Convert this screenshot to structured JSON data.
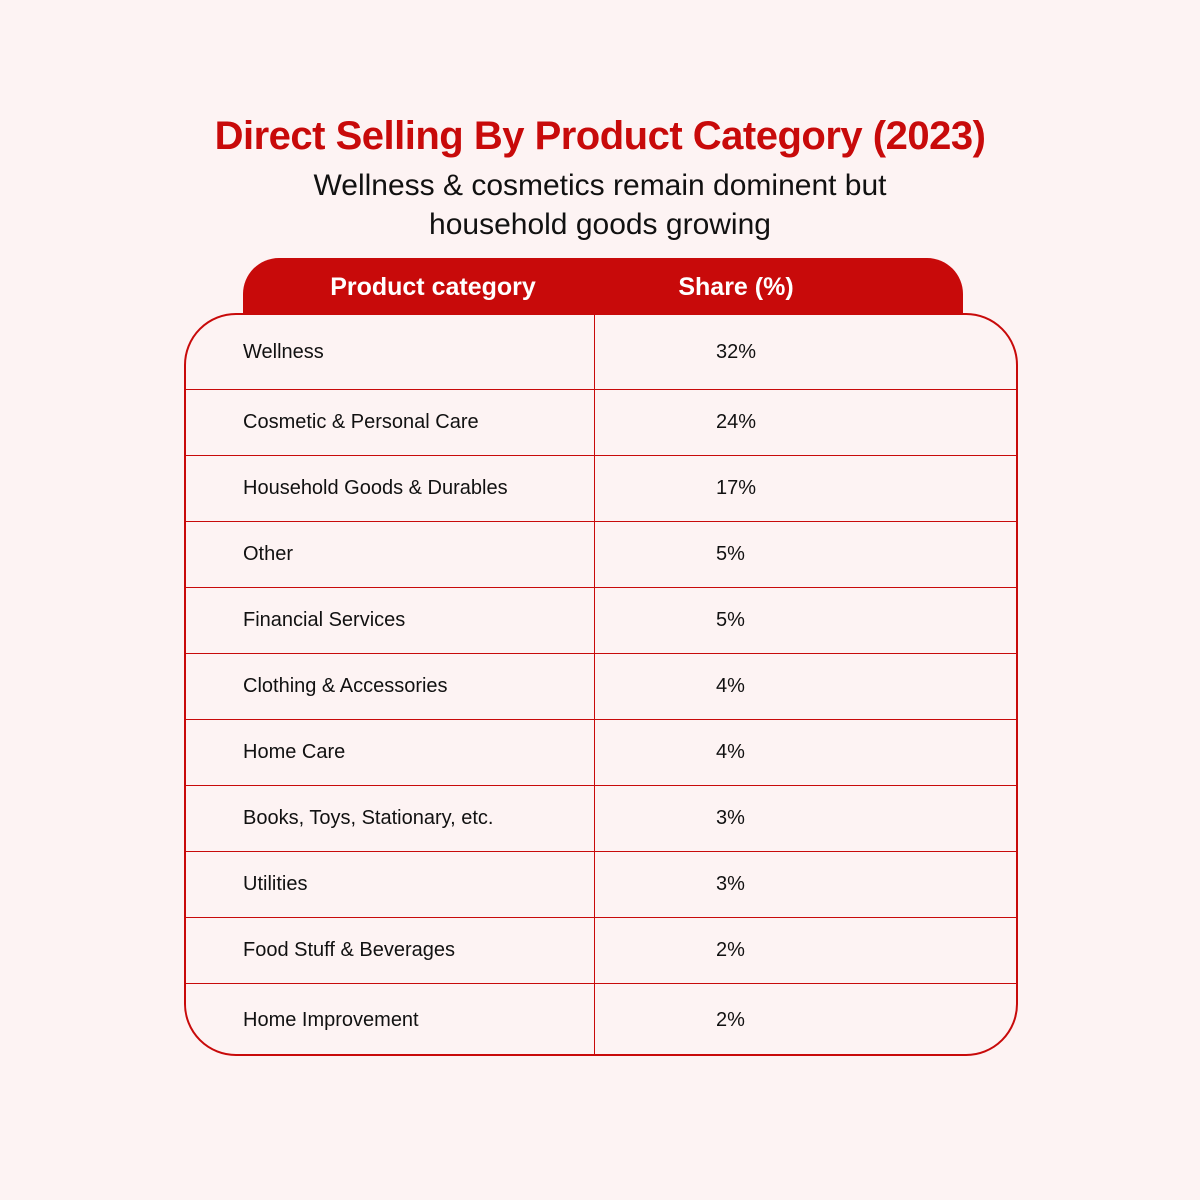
{
  "chart_data": {
    "type": "table",
    "title": "Direct Selling By Product Category (2023)",
    "subtitle": "Wellness & cosmetics remain dominent but household goods growing",
    "columns": [
      "Product category",
      "Share (%)"
    ],
    "rows": [
      {
        "category": "Wellness",
        "share": "32%"
      },
      {
        "category": "Cosmetic & Personal Care",
        "share": "24%"
      },
      {
        "category": "Household Goods & Durables",
        "share": "17%"
      },
      {
        "category": "Other",
        "share": "5%"
      },
      {
        "category": "Financial Services",
        "share": "5%"
      },
      {
        "category": "Clothing & Accessories",
        "share": "4%"
      },
      {
        "category": "Home Care",
        "share": "4%"
      },
      {
        "category": "Books, Toys, Stationary, etc.",
        "share": "3%"
      },
      {
        "category": "Utilities",
        "share": "3%"
      },
      {
        "category": "Food Stuff & Beverages",
        "share": "2%"
      },
      {
        "category": "Home Improvement",
        "share": "2%"
      }
    ]
  },
  "colors": {
    "accent": "#c80a0a",
    "background": "#fdf3f3",
    "text": "#111111",
    "header_text": "#ffffff"
  }
}
